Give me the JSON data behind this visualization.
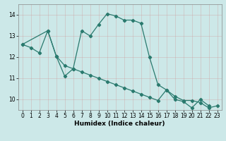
{
  "line1_x": [
    0,
    1,
    2,
    3,
    4,
    5,
    6,
    7,
    8,
    9,
    10,
    11,
    12,
    13,
    14,
    15,
    16,
    17,
    18,
    19,
    20,
    21,
    22
  ],
  "line1_y": [
    12.6,
    12.45,
    12.2,
    13.25,
    12.05,
    11.1,
    11.45,
    13.25,
    13.0,
    13.55,
    14.05,
    13.95,
    13.75,
    13.75,
    13.6,
    12.0,
    10.7,
    10.45,
    10.0,
    9.9,
    9.6,
    10.0,
    9.7
  ],
  "line2_x": [
    0,
    3,
    4,
    5,
    6,
    7,
    8,
    9,
    10,
    11,
    12,
    13,
    14,
    15,
    16,
    17,
    18,
    19,
    20,
    21,
    22,
    23
  ],
  "line2_y": [
    12.6,
    13.25,
    12.05,
    11.6,
    11.45,
    11.3,
    11.15,
    11.0,
    10.85,
    10.7,
    10.55,
    10.4,
    10.25,
    10.1,
    9.95,
    10.45,
    10.15,
    9.95,
    9.95,
    9.85,
    9.6,
    9.7
  ],
  "color": "#2a7a6e",
  "bg_color": "#cce8e8",
  "xlabel": "Humidex (Indice chaleur)",
  "ylim": [
    9.5,
    14.5
  ],
  "xlim": [
    -0.5,
    23.5
  ],
  "yticks": [
    10,
    11,
    12,
    13,
    14
  ],
  "xticks": [
    0,
    1,
    2,
    3,
    4,
    5,
    6,
    7,
    8,
    9,
    10,
    11,
    12,
    13,
    14,
    15,
    16,
    17,
    18,
    19,
    20,
    21,
    22,
    23
  ],
  "marker": "D",
  "markersize": 2.2,
  "linewidth": 0.9,
  "tick_fontsize": 5.5,
  "xlabel_fontsize": 6.5
}
